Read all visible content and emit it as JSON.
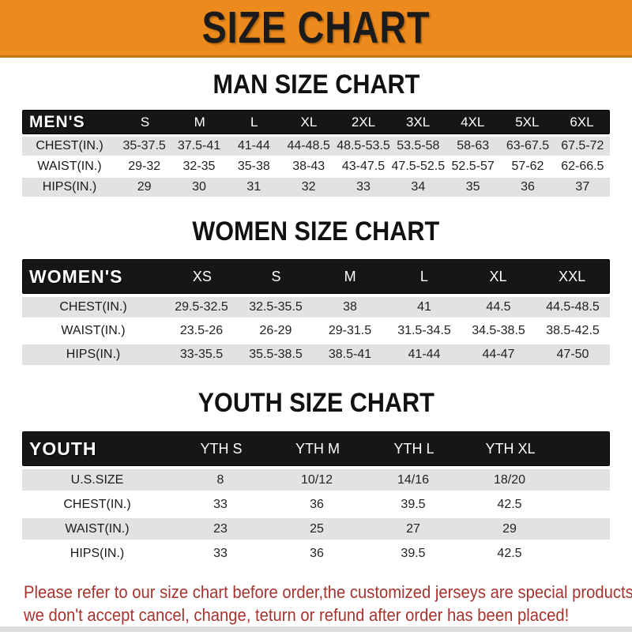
{
  "banner": {
    "title": "SIZE CHART",
    "bg_color": "#EC8A1D",
    "text_color": "#1b1b1b"
  },
  "colors": {
    "header_bar": "#161616",
    "shaded_row": "#E2E2E2",
    "footer_text": "#A6332E"
  },
  "sections": [
    {
      "heading": "MAN SIZE CHART",
      "table": {
        "label": "MEN'S",
        "columns": [
          "S",
          "M",
          "L",
          "XL",
          "2XL",
          "3XL",
          "4XL",
          "5XL",
          "6XL"
        ],
        "rows": [
          {
            "label": "CHEST(IN.)",
            "values": [
              "35-37.5",
              "37.5-41",
              "41-44",
              "44-48.5",
              "48.5-53.5",
              "53.5-58",
              "58-63",
              "63-67.5",
              "67.5-72"
            ]
          },
          {
            "label": "WAIST(IN.)",
            "values": [
              "29-32",
              "32-35",
              "35-38",
              "38-43",
              "43-47.5",
              "47.5-52.5",
              "52.5-57",
              "57-62",
              "62-66.5"
            ]
          },
          {
            "label": "HIPS(IN.)",
            "values": [
              "29",
              "30",
              "31",
              "32",
              "33",
              "34",
              "35",
              "36",
              "37"
            ]
          }
        ]
      }
    },
    {
      "heading": "WOMEN SIZE CHART",
      "table": {
        "label": "WOMEN'S",
        "columns": [
          "XS",
          "S",
          "M",
          "L",
          "XL",
          "XXL"
        ],
        "rows": [
          {
            "label": "CHEST(IN.)",
            "values": [
              "29.5-32.5",
              "32.5-35.5",
              "38",
              "41",
              "44.5",
              "44.5-48.5"
            ]
          },
          {
            "label": "WAIST(IN.)",
            "values": [
              "23.5-26",
              "26-29",
              "29-31.5",
              "31.5-34.5",
              "34.5-38.5",
              "38.5-42.5"
            ]
          },
          {
            "label": "HIPS(IN.)",
            "values": [
              "33-35.5",
              "35.5-38.5",
              "38.5-41",
              "41-44",
              "44-47",
              "47-50"
            ]
          }
        ]
      }
    },
    {
      "heading": "YOUTH SIZE CHART",
      "table": {
        "label": "YOUTH",
        "columns": [
          "YTH S",
          "YTH M",
          "YTH L",
          "YTH XL"
        ],
        "rows": [
          {
            "label": "U.S.SIZE",
            "values": [
              "8",
              "10/12",
              "14/16",
              "18/20"
            ]
          },
          {
            "label": "CHEST(IN.)",
            "values": [
              "33",
              "36",
              "39.5",
              "42.5"
            ]
          },
          {
            "label": "WAIST(IN.)",
            "values": [
              "23",
              "25",
              "27",
              "29"
            ]
          },
          {
            "label": "HIPS(IN.)",
            "values": [
              "33",
              "36",
              "39.5",
              "42.5"
            ]
          }
        ]
      }
    }
  ],
  "footer": {
    "line1": "Please refer to our size chart before order,the customized jerseys are special products,",
    "line2": "we don't accept cancel, change, teturn or refund after order has been placed!"
  }
}
